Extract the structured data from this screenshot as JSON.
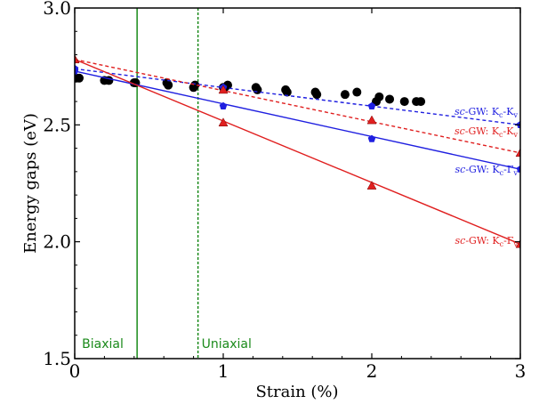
{
  "chart_data": {
    "type": "line",
    "xlabel": "Strain (%)",
    "ylabel": "Energy gaps (eV)",
    "xlim": [
      0,
      3
    ],
    "ylim": [
      1.5,
      3.0
    ],
    "xticks": [
      "0",
      "1",
      "2",
      "3"
    ],
    "yticks": [
      "1.5",
      "2.0",
      "2.5",
      "3.0"
    ],
    "grid": false,
    "colors": {
      "blue": "#1f1fe0",
      "red": "#e01f1f",
      "green": "#1a8a1a",
      "black": "#000000"
    },
    "vlines": [
      {
        "x": 0.42,
        "style": "solid",
        "color": "#1a8a1a",
        "label": "Biaxial"
      },
      {
        "x": 0.83,
        "style": "dashed",
        "color": "#1a8a1a",
        "label": "Uniaxial"
      }
    ],
    "series": [
      {
        "name": "sc-GW: Kc-Kv",
        "label": {
          "italic": "sc",
          "rest": "-GW: K",
          "sub1": "c",
          "mid": "-K",
          "sub2": "v"
        },
        "color": "#1f1fe0",
        "style": "dashed",
        "marker": "pentagon",
        "line_x": [
          0,
          3
        ],
        "line_y": [
          2.74,
          2.5
        ],
        "x": [
          0,
          1,
          2,
          3
        ],
        "y": [
          2.74,
          2.66,
          2.58,
          2.5
        ]
      },
      {
        "name": "sc-GW: Kc-Kv",
        "label": {
          "italic": "sc",
          "rest": "-GW: K",
          "sub1": "c",
          "mid": "-K",
          "sub2": "v"
        },
        "color": "#e01f1f",
        "style": "dashed",
        "marker": "triangle",
        "line_x": [
          0,
          3
        ],
        "line_y": [
          2.78,
          2.38
        ],
        "x": [
          0,
          1,
          2,
          3
        ],
        "y": [
          2.78,
          2.65,
          2.52,
          2.38
        ]
      },
      {
        "name": "sc-GW: Kc-Γv",
        "label": {
          "italic": "sc",
          "rest": "-GW: K",
          "sub1": "c",
          "mid": "-Γ",
          "sub2": "v"
        },
        "color": "#1f1fe0",
        "style": "solid",
        "marker": "pentagon",
        "line_x": [
          0,
          3
        ],
        "line_y": [
          2.73,
          2.31
        ],
        "x": [
          0,
          1,
          2,
          3
        ],
        "y": [
          2.73,
          2.58,
          2.44,
          2.31
        ]
      },
      {
        "name": "sc-GW: Kc-Γv",
        "label": {
          "italic": "sc",
          "rest": "-GW: K",
          "sub1": "c",
          "mid": "-Γ",
          "sub2": "v"
        },
        "color": "#e01f1f",
        "style": "solid",
        "marker": "triangle",
        "line_x": [
          0,
          3
        ],
        "line_y": [
          2.78,
          1.99
        ],
        "x": [
          0,
          1,
          2,
          3
        ],
        "y": [
          2.78,
          2.51,
          2.24,
          1.99
        ]
      }
    ],
    "experimental": {
      "color": "#000000",
      "x": [
        0.01,
        0.03,
        0.2,
        0.23,
        0.4,
        0.41,
        0.62,
        0.63,
        0.8,
        0.81,
        1.0,
        1.01,
        1.03,
        1.22,
        1.23,
        1.42,
        1.43,
        1.62,
        1.63,
        1.82,
        1.9,
        2.03,
        2.05,
        2.12,
        2.22,
        2.3,
        2.33
      ],
      "y": [
        2.7,
        2.7,
        2.69,
        2.69,
        2.68,
        2.68,
        2.68,
        2.67,
        2.66,
        2.67,
        2.66,
        2.66,
        2.67,
        2.66,
        2.65,
        2.65,
        2.64,
        2.64,
        2.63,
        2.63,
        2.64,
        2.6,
        2.62,
        2.61,
        2.6,
        2.6,
        2.6
      ]
    }
  }
}
